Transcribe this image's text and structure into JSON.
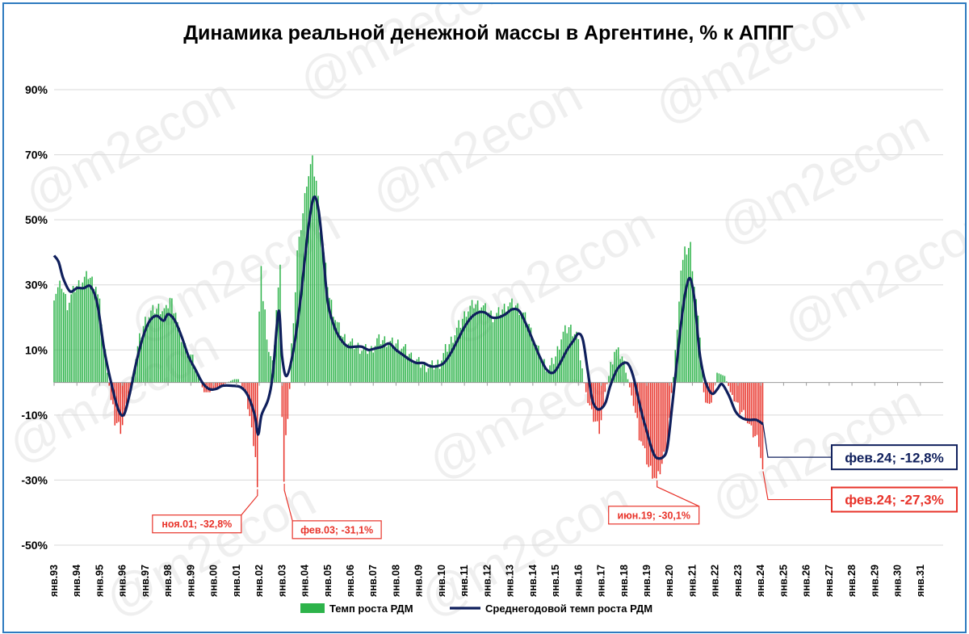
{
  "chart_data": {
    "type": "bar+line",
    "title": "Динамика реальной денежной массы в Аргентине, % к АППГ",
    "watermark": "@m2econ",
    "ylim": [
      -50,
      90
    ],
    "yticks": [
      {
        "value": 90,
        "label": "90%"
      },
      {
        "value": 70,
        "label": "70%"
      },
      {
        "value": 50,
        "label": "50%"
      },
      {
        "value": 30,
        "label": "30%"
      },
      {
        "value": 10,
        "label": "10%"
      },
      {
        "value": -10,
        "label": "-10%"
      },
      {
        "value": -30,
        "label": "-30%"
      },
      {
        "value": -50,
        "label": "-50%"
      }
    ],
    "x_start_year": 1993,
    "x_end_year": 2032,
    "xticks": [
      "янв.93",
      "янв.94",
      "янв.95",
      "янв.96",
      "янв.97",
      "янв.98",
      "янв.99",
      "янв.00",
      "янв.01",
      "янв.02",
      "янв.03",
      "янв.04",
      "янв.05",
      "янв.06",
      "янв.07",
      "янв.08",
      "янв.09",
      "янв.10",
      "янв.11",
      "янв.12",
      "янв.13",
      "янв.14",
      "янв.15",
      "янв.16",
      "янв.17",
      "янв.18",
      "янв.19",
      "янв.20",
      "янв.21",
      "янв.22",
      "янв.23",
      "янв.24",
      "янв.25",
      "янв.26",
      "янв.27",
      "янв.28",
      "янв.29",
      "янв.30",
      "янв.31"
    ],
    "bar_series": {
      "name": "Темп роста РДМ",
      "positive_color": "#2db34a",
      "negative_color": "#e8332a",
      "anchors": [
        [
          1993.0,
          27
        ],
        [
          1993.3,
          30
        ],
        [
          1993.6,
          24
        ],
        [
          1993.9,
          29
        ],
        [
          1994.2,
          31
        ],
        [
          1994.5,
          33
        ],
        [
          1994.8,
          30
        ],
        [
          1995.0,
          24
        ],
        [
          1995.2,
          12
        ],
        [
          1995.35,
          3
        ],
        [
          1995.5,
          -6
        ],
        [
          1995.7,
          -12
        ],
        [
          1995.9,
          -14
        ],
        [
          1996.1,
          -11
        ],
        [
          1996.3,
          -3
        ],
        [
          1996.5,
          5
        ],
        [
          1996.8,
          15
        ],
        [
          1997.0,
          19
        ],
        [
          1997.3,
          22
        ],
        [
          1997.6,
          23
        ],
        [
          1997.9,
          22
        ],
        [
          1998.1,
          26
        ],
        [
          1998.3,
          22
        ],
        [
          1998.5,
          15
        ],
        [
          1998.8,
          10
        ],
        [
          1999.0,
          8
        ],
        [
          1999.2,
          5
        ],
        [
          1999.4,
          0
        ],
        [
          1999.6,
          -3
        ],
        [
          1999.8,
          -3
        ],
        [
          2000.0,
          -2
        ],
        [
          2000.3,
          -1
        ],
        [
          2000.6,
          0
        ],
        [
          2000.9,
          1
        ],
        [
          2001.1,
          1
        ],
        [
          2001.3,
          -2
        ],
        [
          2001.5,
          -7
        ],
        [
          2001.7,
          -15
        ],
        [
          2001.9,
          -26
        ],
        [
          2001.92,
          -32.8
        ],
        [
          2002.0,
          20
        ],
        [
          2002.1,
          37
        ],
        [
          2002.2,
          25
        ],
        [
          2002.4,
          10
        ],
        [
          2002.6,
          5
        ],
        [
          2002.8,
          28
        ],
        [
          2002.9,
          38
        ],
        [
          2003.0,
          -10
        ],
        [
          2003.1,
          -31.1
        ],
        [
          2003.2,
          -18
        ],
        [
          2003.3,
          -2
        ],
        [
          2003.5,
          20
        ],
        [
          2003.7,
          40
        ],
        [
          2003.9,
          52
        ],
        [
          2004.1,
          62
        ],
        [
          2004.3,
          68
        ],
        [
          2004.5,
          62
        ],
        [
          2004.7,
          48
        ],
        [
          2004.9,
          35
        ],
        [
          2005.1,
          26
        ],
        [
          2005.4,
          18
        ],
        [
          2005.7,
          14
        ],
        [
          2006.0,
          12
        ],
        [
          2006.3,
          11
        ],
        [
          2006.6,
          10
        ],
        [
          2006.9,
          10
        ],
        [
          2007.2,
          13
        ],
        [
          2007.5,
          13
        ],
        [
          2007.8,
          12
        ],
        [
          2008.1,
          12
        ],
        [
          2008.4,
          10
        ],
        [
          2008.7,
          8
        ],
        [
          2009.0,
          6
        ],
        [
          2009.3,
          5
        ],
        [
          2009.6,
          5
        ],
        [
          2009.9,
          6
        ],
        [
          2010.2,
          10
        ],
        [
          2010.5,
          14
        ],
        [
          2010.8,
          18
        ],
        [
          2011.1,
          22
        ],
        [
          2011.4,
          24
        ],
        [
          2011.7,
          24
        ],
        [
          2012.0,
          22
        ],
        [
          2012.3,
          20
        ],
        [
          2012.6,
          22
        ],
        [
          2012.9,
          24
        ],
        [
          2013.2,
          24
        ],
        [
          2013.5,
          22
        ],
        [
          2013.8,
          18
        ],
        [
          2014.1,
          12
        ],
        [
          2014.4,
          7
        ],
        [
          2014.7,
          4
        ],
        [
          2015.0,
          8
        ],
        [
          2015.3,
          15
        ],
        [
          2015.6,
          17
        ],
        [
          2015.9,
          15
        ],
        [
          2016.1,
          8
        ],
        [
          2016.3,
          -3
        ],
        [
          2016.6,
          -10
        ],
        [
          2016.9,
          -14
        ],
        [
          2017.1,
          -8
        ],
        [
          2017.3,
          2
        ],
        [
          2017.6,
          10
        ],
        [
          2017.9,
          8
        ],
        [
          2018.1,
          3
        ],
        [
          2018.4,
          -6
        ],
        [
          2018.7,
          -16
        ],
        [
          2018.9,
          -22
        ],
        [
          2019.1,
          -26
        ],
        [
          2019.45,
          -30.1
        ],
        [
          2019.6,
          -27
        ],
        [
          2019.9,
          -18
        ],
        [
          2020.1,
          -5
        ],
        [
          2020.3,
          15
        ],
        [
          2020.5,
          35
        ],
        [
          2020.7,
          40
        ],
        [
          2020.9,
          42
        ],
        [
          2021.1,
          30
        ],
        [
          2021.3,
          15
        ],
        [
          2021.5,
          -3
        ],
        [
          2021.8,
          -8
        ],
        [
          2022.1,
          3
        ],
        [
          2022.4,
          2
        ],
        [
          2022.7,
          -3
        ],
        [
          2023.0,
          -8
        ],
        [
          2023.3,
          -10
        ],
        [
          2023.6,
          -15
        ],
        [
          2023.9,
          -18
        ],
        [
          2024.1,
          -27.3
        ]
      ]
    },
    "line_series": {
      "name": "Среднегодовой темп роста РДМ",
      "color": "#0f1f5c",
      "anchors": [
        [
          1993.0,
          39
        ],
        [
          1993.2,
          37
        ],
        [
          1993.4,
          32
        ],
        [
          1993.7,
          28
        ],
        [
          1994.0,
          29
        ],
        [
          1994.3,
          29
        ],
        [
          1994.6,
          29.5
        ],
        [
          1994.9,
          24
        ],
        [
          1995.2,
          10
        ],
        [
          1995.5,
          0
        ],
        [
          1995.8,
          -8
        ],
        [
          1996.05,
          -10
        ],
        [
          1996.3,
          -4
        ],
        [
          1996.6,
          6
        ],
        [
          1996.9,
          14
        ],
        [
          1997.2,
          19
        ],
        [
          1997.5,
          20.5
        ],
        [
          1997.8,
          19
        ],
        [
          1998.0,
          21
        ],
        [
          1998.3,
          19
        ],
        [
          1998.6,
          14
        ],
        [
          1998.9,
          8
        ],
        [
          1999.2,
          4
        ],
        [
          1999.5,
          0
        ],
        [
          1999.8,
          -2
        ],
        [
          2000.1,
          -2
        ],
        [
          2000.4,
          -1
        ],
        [
          2000.8,
          -1
        ],
        [
          2001.2,
          -1.5
        ],
        [
          2001.5,
          -4
        ],
        [
          2001.8,
          -10
        ],
        [
          2001.95,
          -16
        ],
        [
          2002.1,
          -10
        ],
        [
          2002.4,
          -5
        ],
        [
          2002.6,
          3
        ],
        [
          2002.85,
          22
        ],
        [
          2003.0,
          8
        ],
        [
          2003.2,
          2
        ],
        [
          2003.5,
          10
        ],
        [
          2003.8,
          25
        ],
        [
          2004.0,
          38
        ],
        [
          2004.2,
          50
        ],
        [
          2004.4,
          57
        ],
        [
          2004.6,
          53
        ],
        [
          2004.8,
          40
        ],
        [
          2005.0,
          25
        ],
        [
          2005.3,
          17
        ],
        [
          2005.6,
          13
        ],
        [
          2005.9,
          11
        ],
        [
          2006.2,
          11
        ],
        [
          2006.5,
          11
        ],
        [
          2006.8,
          10
        ],
        [
          2007.1,
          10.5
        ],
        [
          2007.4,
          11
        ],
        [
          2007.7,
          12
        ],
        [
          2008.0,
          10
        ],
        [
          2008.3,
          8.5
        ],
        [
          2008.6,
          7
        ],
        [
          2008.9,
          6
        ],
        [
          2009.2,
          6
        ],
        [
          2009.5,
          5
        ],
        [
          2009.8,
          5
        ],
        [
          2010.1,
          6
        ],
        [
          2010.4,
          9
        ],
        [
          2010.7,
          13
        ],
        [
          2011.0,
          17
        ],
        [
          2011.3,
          20
        ],
        [
          2011.6,
          21.5
        ],
        [
          2011.9,
          21.5
        ],
        [
          2012.2,
          20
        ],
        [
          2012.5,
          20
        ],
        [
          2012.8,
          21
        ],
        [
          2013.1,
          22.5
        ],
        [
          2013.4,
          22
        ],
        [
          2013.7,
          18
        ],
        [
          2014.0,
          13
        ],
        [
          2014.3,
          8
        ],
        [
          2014.6,
          4
        ],
        [
          2014.9,
          3
        ],
        [
          2015.2,
          6
        ],
        [
          2015.5,
          10
        ],
        [
          2015.8,
          13
        ],
        [
          2016.0,
          15
        ],
        [
          2016.2,
          13
        ],
        [
          2016.4,
          4
        ],
        [
          2016.6,
          -5
        ],
        [
          2016.8,
          -8
        ],
        [
          2017.0,
          -8
        ],
        [
          2017.2,
          -6
        ],
        [
          2017.4,
          -1
        ],
        [
          2017.7,
          4
        ],
        [
          2018.0,
          6
        ],
        [
          2018.2,
          5.5
        ],
        [
          2018.4,
          2
        ],
        [
          2018.6,
          -4
        ],
        [
          2018.8,
          -10
        ],
        [
          2019.0,
          -15
        ],
        [
          2019.2,
          -20
        ],
        [
          2019.4,
          -23
        ],
        [
          2019.7,
          -23
        ],
        [
          2019.9,
          -20
        ],
        [
          2020.1,
          -8
        ],
        [
          2020.3,
          5
        ],
        [
          2020.5,
          18
        ],
        [
          2020.7,
          28
        ],
        [
          2020.9,
          32
        ],
        [
          2021.1,
          25
        ],
        [
          2021.3,
          10
        ],
        [
          2021.5,
          2
        ],
        [
          2021.7,
          -2
        ],
        [
          2021.9,
          -3.5
        ],
        [
          2022.1,
          -2
        ],
        [
          2022.3,
          -0.5
        ],
        [
          2022.6,
          -4
        ],
        [
          2022.9,
          -9
        ],
        [
          2023.2,
          -11
        ],
        [
          2023.5,
          -11.5
        ],
        [
          2023.8,
          -11.5
        ],
        [
          2024.1,
          -12.8
        ]
      ]
    },
    "annotations": [
      {
        "label": "ноя.01; -32,8%",
        "x": 2001.92,
        "y": -32.8,
        "color": "#e8332a"
      },
      {
        "label": "фев.03; -31,1%",
        "x": 2003.1,
        "y": -31.1,
        "color": "#e8332a"
      },
      {
        "label": "июн.19; -30,1%",
        "x": 2019.45,
        "y": -30.1,
        "color": "#e8332a"
      },
      {
        "label": "фев.24; -12,8%",
        "x": 2024.1,
        "y": -12.8,
        "color": "#0f1f5c"
      },
      {
        "label": "фев.24; -27,3%",
        "x": 2024.1,
        "y": -27.3,
        "color": "#e8332a"
      }
    ],
    "legend": {
      "placement": "bottom",
      "bar_label": "Темп роста РДМ",
      "line_label": "Среднегодовой темп роста РДМ"
    }
  }
}
